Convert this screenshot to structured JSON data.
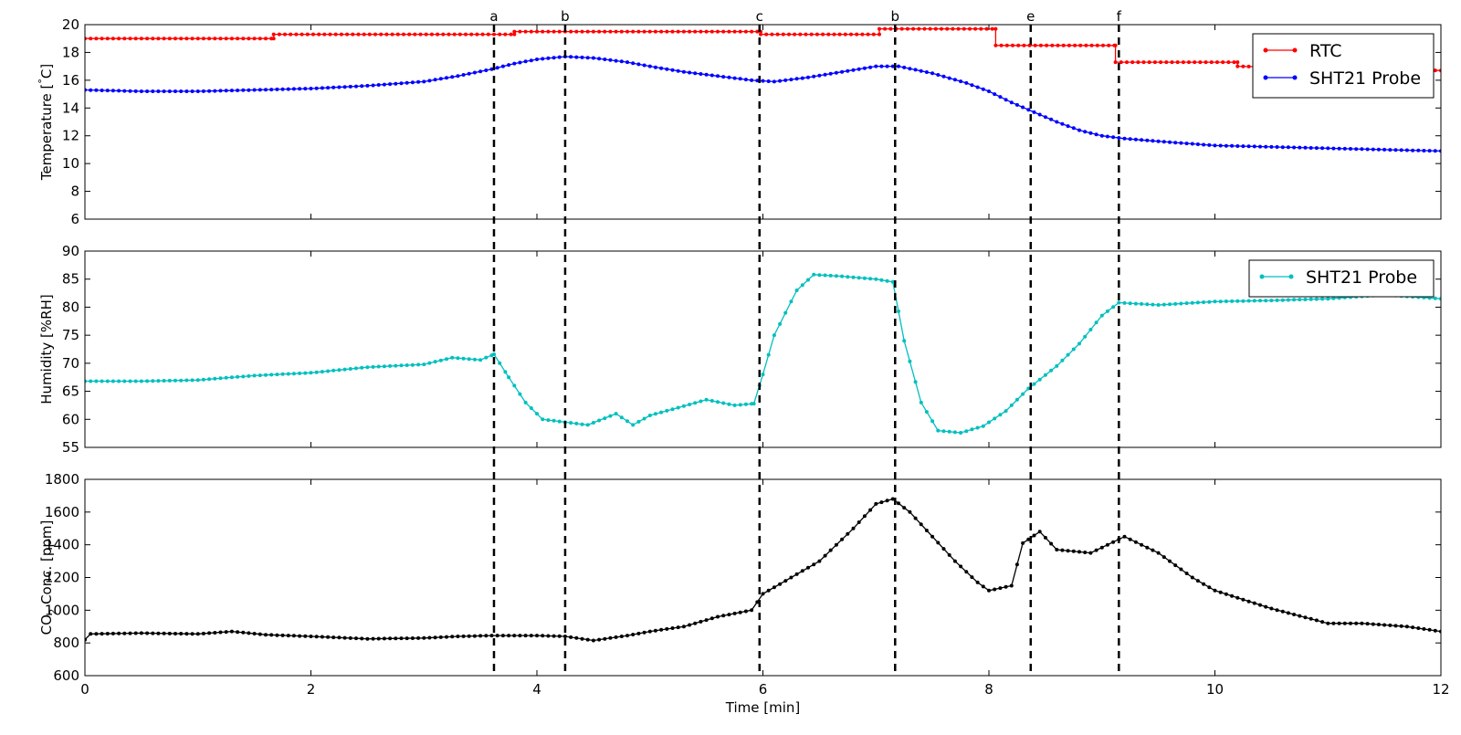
{
  "chart_data": [
    {
      "type": "line",
      "ylabel": "Temperature [$^\\circ$C]",
      "ylim": [
        6,
        20
      ],
      "yticks": [
        6,
        8,
        10,
        12,
        14,
        16,
        18,
        20
      ],
      "xlim": [
        0,
        12
      ],
      "xticks": [
        0,
        2,
        4,
        6,
        8,
        10,
        12
      ],
      "show_xtick_labels": false,
      "legend_position": "top-right",
      "series": [
        {
          "name": "RTC",
          "color": "#ff0000",
          "step": true,
          "x": [
            0,
            1.67,
            1.67,
            3.8,
            3.8,
            5.98,
            5.98,
            7.03,
            7.03,
            8.06,
            8.06,
            9.12,
            9.12,
            10.2,
            10.2,
            12
          ],
          "y": [
            19.0,
            19.0,
            19.3,
            19.3,
            19.5,
            19.5,
            19.3,
            19.3,
            19.7,
            19.7,
            18.5,
            18.5,
            17.3,
            17.3,
            17.0,
            16.7
          ]
        },
        {
          "name": "SHT21 Probe",
          "color": "#0000ff",
          "x": [
            0,
            0.5,
            1.0,
            1.5,
            2.0,
            2.5,
            3.0,
            3.3,
            3.6,
            3.8,
            4.0,
            4.25,
            4.5,
            4.8,
            5.0,
            5.3,
            5.6,
            5.9,
            6.1,
            6.4,
            6.7,
            7.0,
            7.2,
            7.5,
            7.8,
            8.0,
            8.2,
            8.4,
            8.6,
            8.8,
            9.0,
            9.2,
            9.5,
            10.0,
            10.5,
            11.0,
            11.5,
            12.0
          ],
          "y": [
            15.3,
            15.2,
            15.2,
            15.3,
            15.4,
            15.6,
            15.9,
            16.3,
            16.8,
            17.2,
            17.5,
            17.7,
            17.6,
            17.3,
            17.0,
            16.6,
            16.3,
            16.0,
            15.9,
            16.2,
            16.6,
            17.0,
            17.0,
            16.5,
            15.8,
            15.2,
            14.4,
            13.7,
            13.0,
            12.4,
            12.0,
            11.8,
            11.6,
            11.3,
            11.2,
            11.1,
            11.0,
            10.9
          ]
        }
      ]
    },
    {
      "type": "line",
      "ylabel": "Humidity [%RH]",
      "ylim": [
        55,
        90
      ],
      "yticks": [
        55,
        60,
        65,
        70,
        75,
        80,
        85,
        90
      ],
      "xlim": [
        0,
        12
      ],
      "xticks": [
        0,
        2,
        4,
        6,
        8,
        10,
        12
      ],
      "show_xtick_labels": false,
      "legend_position": "top-right",
      "series": [
        {
          "name": "SHT21 Probe",
          "color": "#00bfbf",
          "x": [
            0,
            0.5,
            1.0,
            1.5,
            2.0,
            2.5,
            3.0,
            3.25,
            3.5,
            3.62,
            3.75,
            3.9,
            4.05,
            4.25,
            4.45,
            4.7,
            4.85,
            5.0,
            5.2,
            5.5,
            5.75,
            5.92,
            6.0,
            6.1,
            6.3,
            6.45,
            6.7,
            7.0,
            7.15,
            7.25,
            7.4,
            7.55,
            7.75,
            7.95,
            8.15,
            8.35,
            8.6,
            8.8,
            9.0,
            9.15,
            9.5,
            10.0,
            10.5,
            11.0,
            11.5,
            12.0
          ],
          "y": [
            66.8,
            66.8,
            67.0,
            67.8,
            68.3,
            69.3,
            69.8,
            71.0,
            70.6,
            71.6,
            67.5,
            63.0,
            60.0,
            59.5,
            59.0,
            61.0,
            59.0,
            60.7,
            61.8,
            63.5,
            62.5,
            62.8,
            68.0,
            75.0,
            83.0,
            85.8,
            85.5,
            85.0,
            84.5,
            74.0,
            63.0,
            58.0,
            57.6,
            58.8,
            61.5,
            65.5,
            69.5,
            73.5,
            78.5,
            80.8,
            80.4,
            81.0,
            81.2,
            81.5,
            82.2,
            81.5
          ]
        }
      ]
    },
    {
      "type": "line",
      "ylabel": "CO$_2$ Conc. [ppm]",
      "ylim": [
        600,
        1800
      ],
      "yticks": [
        600,
        800,
        1000,
        1200,
        1400,
        1600,
        1800
      ],
      "xlim": [
        0,
        12
      ],
      "xticks": [
        0,
        2,
        4,
        6,
        8,
        10,
        12
      ],
      "xlabel": "Time [min]",
      "series": [
        {
          "name": "",
          "color": "#000000",
          "x": [
            0,
            0.05,
            0.5,
            1.0,
            1.3,
            1.6,
            2.0,
            2.5,
            3.0,
            3.3,
            3.6,
            4.0,
            4.25,
            4.5,
            4.8,
            5.0,
            5.3,
            5.6,
            5.9,
            6.0,
            6.2,
            6.5,
            6.8,
            7.0,
            7.15,
            7.3,
            7.5,
            7.7,
            7.9,
            8.0,
            8.2,
            8.3,
            8.45,
            8.6,
            8.9,
            9.2,
            9.5,
            9.8,
            10.0,
            10.5,
            11.0,
            11.3,
            11.7,
            12.0
          ],
          "y": [
            820,
            855,
            860,
            855,
            870,
            850,
            840,
            825,
            830,
            840,
            845,
            845,
            840,
            815,
            845,
            870,
            900,
            960,
            1000,
            1100,
            1180,
            1300,
            1500,
            1650,
            1680,
            1600,
            1450,
            1300,
            1170,
            1120,
            1150,
            1410,
            1480,
            1370,
            1350,
            1450,
            1350,
            1200,
            1120,
            1010,
            920,
            920,
            900,
            870
          ]
        }
      ]
    }
  ],
  "events": [
    {
      "label": "a",
      "x": 3.62
    },
    {
      "label": "b",
      "x": 4.25
    },
    {
      "label": "c",
      "x": 5.97
    },
    {
      "label": "b",
      "x": 7.17
    },
    {
      "label": "e",
      "x": 8.37
    },
    {
      "label": "f",
      "x": 9.15
    }
  ]
}
